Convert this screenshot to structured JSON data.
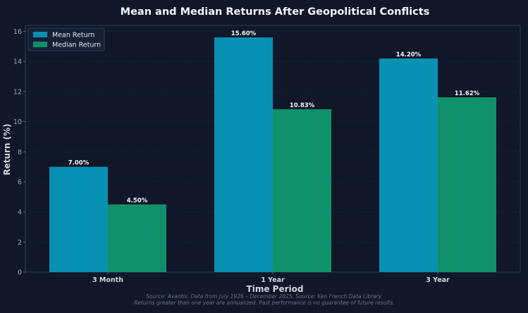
{
  "chart_data": {
    "type": "bar",
    "title": "Mean and Median Returns After Geopolitical Conflicts",
    "xlabel": "Time Period",
    "ylabel": "Return (%)",
    "categories": [
      "3 Month",
      "1 Year",
      "3 Year"
    ],
    "series": [
      {
        "name": "Mean Return",
        "color": "#0891b2",
        "values": [
          7.0,
          15.6,
          14.2
        ],
        "labels": [
          "7.00%",
          "15.60%",
          "14.20%"
        ]
      },
      {
        "name": "Median Return",
        "color": "#10906a",
        "values": [
          4.5,
          10.83,
          11.62
        ],
        "labels": [
          "4.50%",
          "10.83%",
          "11.62%"
        ]
      }
    ],
    "ylim": [
      0,
      16.4
    ],
    "yticks": [
      0,
      2,
      4,
      6,
      8,
      10,
      12,
      14,
      16
    ],
    "grid": true,
    "legend_position": "top-left"
  },
  "footnote": {
    "line1": "Source: Avantis. Data from July 1926 – December 2025. Source: Ken French Data Library.",
    "line2": "Returns greater than one year are annualized. Past performance is no guarantee of future results."
  },
  "colors": {
    "background": "#0f1729",
    "text": "#e5e7eb",
    "muted": "#6b7280",
    "grid": "#1f2a44"
  }
}
